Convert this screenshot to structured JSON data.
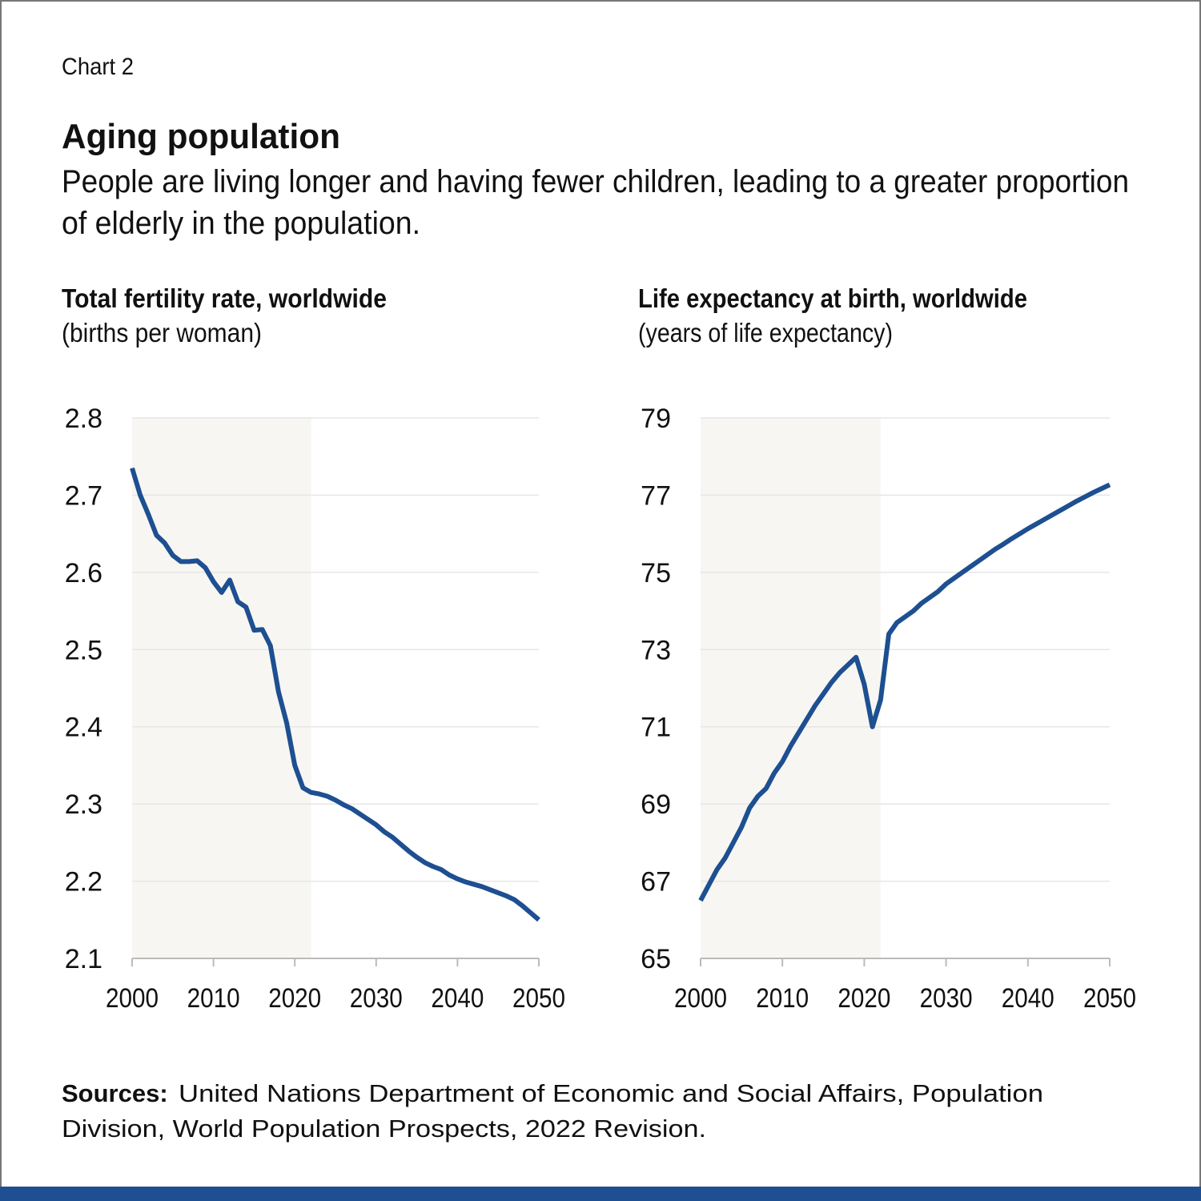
{
  "header": {
    "label": "Chart 2",
    "title": "Aging population",
    "subtitle": [
      "People are living longer and having fewer children, leading to a greater proportion",
      "of elderly in the population."
    ]
  },
  "source": {
    "label": "Sources:",
    "text": [
      "United Nations Department of Economic and Social Affairs, Population",
      "Division, World Population Prospects, 2022 Revision."
    ]
  },
  "chart_data": [
    {
      "type": "line",
      "title": "Total fertility rate, worldwide",
      "subtitle": "(births per woman)",
      "x": [
        2000,
        2001,
        2002,
        2003,
        2004,
        2005,
        2006,
        2007,
        2008,
        2009,
        2010,
        2011,
        2012,
        2013,
        2014,
        2015,
        2016,
        2017,
        2018,
        2019,
        2020,
        2021,
        2022,
        2023,
        2024,
        2025,
        2026,
        2027,
        2028,
        2029,
        2030,
        2031,
        2032,
        2033,
        2034,
        2035,
        2036,
        2037,
        2038,
        2039,
        2040,
        2041,
        2042,
        2043,
        2044,
        2045,
        2046,
        2047,
        2048,
        2049,
        2050
      ],
      "series": [
        {
          "color": "#1d4f91",
          "values": [
            2.735,
            2.7,
            2.675,
            2.648,
            2.638,
            2.622,
            2.614,
            2.614,
            2.615,
            2.606,
            2.588,
            2.574,
            2.59,
            2.562,
            2.555,
            2.525,
            2.526,
            2.505,
            2.445,
            2.405,
            2.35,
            2.321,
            2.315,
            2.313,
            2.31,
            2.305,
            2.299,
            2.294,
            2.287,
            2.28,
            2.273,
            2.264,
            2.257,
            2.248,
            2.239,
            2.231,
            2.224,
            2.219,
            2.215,
            2.208,
            2.203,
            2.199,
            2.196,
            2.193,
            2.189,
            2.185,
            2.181,
            2.176,
            2.168,
            2.159,
            2.15
          ]
        }
      ],
      "xlim": [
        2000,
        2050
      ],
      "xticks": [
        2000,
        2010,
        2020,
        2030,
        2040,
        2050
      ],
      "ylim": [
        2.1,
        2.8
      ],
      "yticks": [
        2.8,
        2.7,
        2.6,
        2.5,
        2.4,
        2.3,
        2.2,
        2.1
      ],
      "grid": true,
      "shaded_range": [
        2000,
        2022
      ],
      "shade_color": "#f7f6f2"
    },
    {
      "type": "line",
      "title": "Life expectancy at birth, worldwide",
      "subtitle": "(years of life expectancy)",
      "x": [
        2000,
        2001,
        2002,
        2003,
        2004,
        2005,
        2006,
        2007,
        2008,
        2009,
        2010,
        2011,
        2012,
        2013,
        2014,
        2015,
        2016,
        2017,
        2018,
        2019,
        2020,
        2021,
        2022,
        2023,
        2024,
        2025,
        2026,
        2027,
        2028,
        2029,
        2030,
        2031,
        2032,
        2033,
        2034,
        2035,
        2036,
        2037,
        2038,
        2039,
        2040,
        2041,
        2042,
        2043,
        2044,
        2045,
        2046,
        2047,
        2048,
        2049,
        2050
      ],
      "series": [
        {
          "color": "#1d4f91",
          "values": [
            66.5,
            66.9,
            67.3,
            67.6,
            68.0,
            68.4,
            68.9,
            69.2,
            69.4,
            69.8,
            70.1,
            70.5,
            70.85,
            71.2,
            71.55,
            71.85,
            72.15,
            72.4,
            72.6,
            72.8,
            72.1,
            71.0,
            71.7,
            73.4,
            73.7,
            73.85,
            74.0,
            74.2,
            74.35,
            74.5,
            74.7,
            74.85,
            75.0,
            75.15,
            75.3,
            75.45,
            75.6,
            75.73,
            75.87,
            76.0,
            76.13,
            76.25,
            76.37,
            76.49,
            76.61,
            76.73,
            76.85,
            76.96,
            77.07,
            77.17,
            77.27
          ]
        }
      ],
      "xlim": [
        2000,
        2050
      ],
      "xticks": [
        2000,
        2010,
        2020,
        2030,
        2040,
        2050
      ],
      "ylim": [
        65,
        79
      ],
      "yticks": [
        79,
        77,
        75,
        73,
        71,
        69,
        67,
        65
      ],
      "grid": true,
      "shaded_range": [
        2000,
        2022
      ],
      "shade_color": "#f7f6f2"
    }
  ]
}
